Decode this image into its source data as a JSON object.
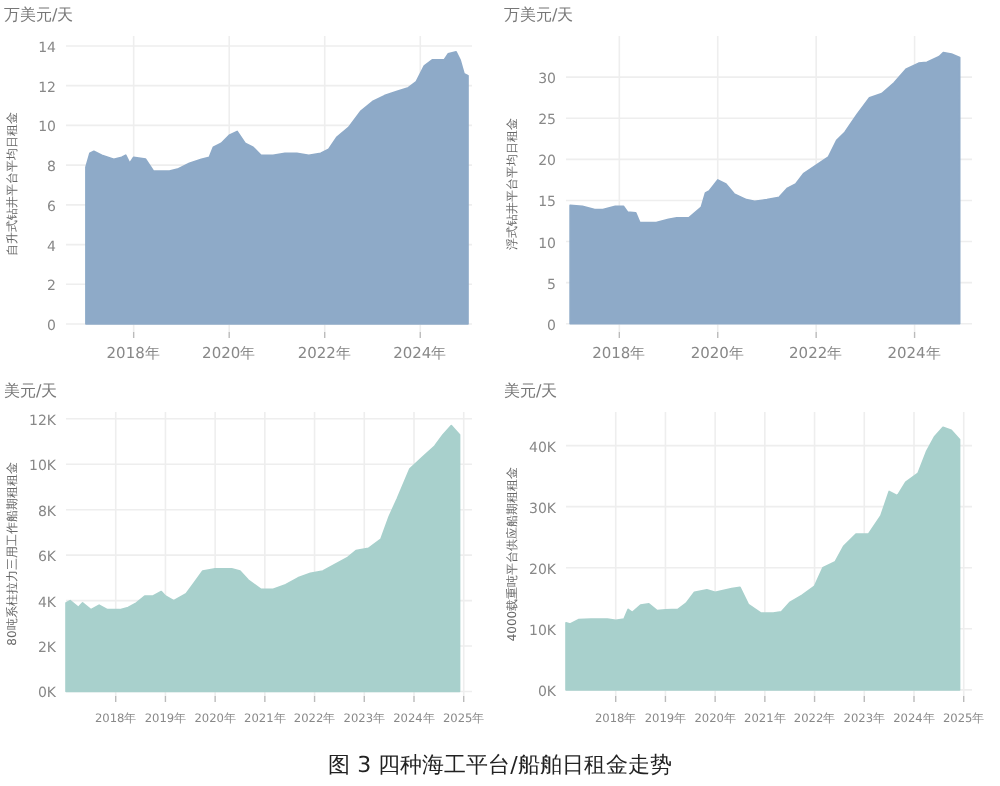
{
  "chart_data": [
    {
      "type": "area",
      "subtitle": "万美元/天",
      "ylabel": "自升式钻井平台平均日租金",
      "color": "#8eaac8",
      "grid": true,
      "xlim": [
        "2016-08",
        "2025-02"
      ],
      "ylim": [
        -0.4,
        14.5
      ],
      "xticks": [
        {
          "value": "2018",
          "label": "2018年"
        },
        {
          "value": "2020",
          "label": "2020年"
        },
        {
          "value": "2022",
          "label": "2022年"
        },
        {
          "value": "2024",
          "label": "2024年"
        }
      ],
      "yticks": [
        0,
        2,
        4,
        6,
        8,
        10,
        12,
        14
      ],
      "x": [
        "2017-01",
        "2017-02",
        "2017-03",
        "2017-05",
        "2017-08",
        "2017-10",
        "2017-11",
        "2017-12",
        "2018-01",
        "2018-04",
        "2018-06",
        "2018-10",
        "2018-12",
        "2019-03",
        "2019-06",
        "2019-08",
        "2019-09",
        "2019-11",
        "2020-01",
        "2020-03",
        "2020-05",
        "2020-07",
        "2020-09",
        "2020-12",
        "2021-03",
        "2021-06",
        "2021-09",
        "2021-12",
        "2022-02",
        "2022-04",
        "2022-07",
        "2022-10",
        "2023-01",
        "2023-04",
        "2023-07",
        "2023-10",
        "2023-12",
        "2024-02",
        "2024-04",
        "2024-07",
        "2024-08",
        "2024-10",
        "2024-11",
        "2024-12",
        "2025-01"
      ],
      "values": [
        7.9,
        8.6,
        8.7,
        8.5,
        8.3,
        8.4,
        8.5,
        8.1,
        8.4,
        8.3,
        7.7,
        7.7,
        7.8,
        8.1,
        8.3,
        8.4,
        8.9,
        9.1,
        9.5,
        9.7,
        9.1,
        8.9,
        8.5,
        8.5,
        8.6,
        8.6,
        8.5,
        8.6,
        8.8,
        9.4,
        9.9,
        10.7,
        11.2,
        11.5,
        11.7,
        11.9,
        12.2,
        13.0,
        13.3,
        13.3,
        13.6,
        13.7,
        13.3,
        12.6,
        12.5
      ]
    },
    {
      "type": "area",
      "subtitle": "万美元/天",
      "ylabel": "浮式钻井平台平均日租金",
      "color": "#8eaac8",
      "grid": true,
      "xlim": [
        "2016-12",
        "2025-03"
      ],
      "ylim": [
        -1,
        35
      ],
      "xticks": [
        {
          "value": "2018",
          "label": "2018年"
        },
        {
          "value": "2020",
          "label": "2020年"
        },
        {
          "value": "2022",
          "label": "2022年"
        },
        {
          "value": "2024",
          "label": "2024年"
        }
      ],
      "yticks": [
        0,
        5,
        10,
        15,
        20,
        25,
        30
      ],
      "x": [
        "2017-01",
        "2017-04",
        "2017-07",
        "2017-09",
        "2017-12",
        "2018-02",
        "2018-03",
        "2018-05",
        "2018-06",
        "2018-10",
        "2019-01",
        "2019-03",
        "2019-06",
        "2019-09",
        "2019-10",
        "2019-11",
        "2020-01",
        "2020-03",
        "2020-05",
        "2020-08",
        "2020-10",
        "2021-01",
        "2021-04",
        "2021-06",
        "2021-08",
        "2021-10",
        "2022-01",
        "2022-04",
        "2022-06",
        "2022-08",
        "2022-11",
        "2023-02",
        "2023-05",
        "2023-08",
        "2023-11",
        "2024-02",
        "2024-04",
        "2024-07",
        "2024-08",
        "2024-10",
        "2024-12"
      ],
      "values": [
        14.4,
        14.3,
        13.9,
        13.9,
        14.3,
        14.3,
        13.6,
        13.5,
        12.3,
        12.3,
        12.7,
        12.9,
        12.9,
        14.2,
        15.9,
        16.2,
        17.5,
        17.0,
        15.8,
        15.1,
        14.9,
        15.1,
        15.4,
        16.5,
        17.0,
        18.3,
        19.3,
        20.3,
        22.3,
        23.3,
        25.5,
        27.5,
        28.0,
        29.3,
        31.0,
        31.7,
        31.8,
        32.5,
        33.0,
        32.8,
        32.4
      ]
    },
    {
      "type": "area",
      "subtitle": "美元/天",
      "ylabel": "80吨系柱拉力三用工作船期租租金",
      "color": "#a8d0cc",
      "grid": true,
      "xlim": [
        "2017-01",
        "2025-03"
      ],
      "ylim": [
        -200,
        12300
      ],
      "xticks": [
        {
          "value": "2018",
          "label": "2018年"
        },
        {
          "value": "2019",
          "label": "2019年"
        },
        {
          "value": "2020",
          "label": "2020年"
        },
        {
          "value": "2021",
          "label": "2021年"
        },
        {
          "value": "2022",
          "label": "2022年"
        },
        {
          "value": "2023",
          "label": "2023年"
        },
        {
          "value": "2024",
          "label": "2024年"
        },
        {
          "value": "2025",
          "label": "2025年"
        }
      ],
      "yticks": [
        {
          "value": 0,
          "label": "0K"
        },
        {
          "value": 2000,
          "label": "2K"
        },
        {
          "value": 4000,
          "label": "4K"
        },
        {
          "value": 6000,
          "label": "6K"
        },
        {
          "value": 8000,
          "label": "8K"
        },
        {
          "value": 10000,
          "label": "10K"
        },
        {
          "value": 12000,
          "label": "12K"
        }
      ],
      "x": [
        "2017-01",
        "2017-02",
        "2017-04",
        "2017-05",
        "2017-07",
        "2017-09",
        "2017-11",
        "2018-02",
        "2018-04",
        "2018-06",
        "2018-08",
        "2018-10",
        "2018-12",
        "2019-01",
        "2019-03",
        "2019-06",
        "2019-08",
        "2019-10",
        "2020-01",
        "2020-05",
        "2020-07",
        "2020-09",
        "2020-12",
        "2021-03",
        "2021-06",
        "2021-09",
        "2021-12",
        "2022-03",
        "2022-06",
        "2022-09",
        "2022-11",
        "2023-02",
        "2023-05",
        "2023-07",
        "2023-09",
        "2023-12",
        "2024-03",
        "2024-06",
        "2024-08",
        "2024-10",
        "2024-12"
      ],
      "values": [
        3900,
        4000,
        3700,
        3900,
        3600,
        3800,
        3600,
        3600,
        3700,
        3900,
        4200,
        4200,
        4400,
        4200,
        4000,
        4300,
        4800,
        5300,
        5400,
        5400,
        5300,
        4900,
        4500,
        4500,
        4700,
        5000,
        5200,
        5300,
        5600,
        5900,
        6200,
        6300,
        6700,
        7700,
        8500,
        9800,
        10300,
        10800,
        11300,
        11700,
        11300
      ]
    },
    {
      "type": "area",
      "subtitle": "美元/天",
      "ylabel": "4000载重吨平台供应船期租租金",
      "color": "#a8d0cc",
      "grid": true,
      "xlim": [
        "2017-01",
        "2025-03"
      ],
      "ylim": [
        -1000,
        45500
      ],
      "xticks": [
        {
          "value": "2018",
          "label": "2018年"
        },
        {
          "value": "2019",
          "label": "2019年"
        },
        {
          "value": "2020",
          "label": "2020年"
        },
        {
          "value": "2021",
          "label": "2021年"
        },
        {
          "value": "2022",
          "label": "2022年"
        },
        {
          "value": "2023",
          "label": "2023年"
        },
        {
          "value": "2024",
          "label": "2024年"
        },
        {
          "value": "2025",
          "label": "2025年"
        }
      ],
      "yticks": [
        {
          "value": 0,
          "label": "0K"
        },
        {
          "value": 10000,
          "label": "10K"
        },
        {
          "value": 20000,
          "label": "20K"
        },
        {
          "value": 30000,
          "label": "30K"
        },
        {
          "value": 40000,
          "label": "40K"
        }
      ],
      "x": [
        "2017-01",
        "2017-02",
        "2017-04",
        "2017-07",
        "2017-11",
        "2018-01",
        "2018-03",
        "2018-04",
        "2018-05",
        "2018-07",
        "2018-09",
        "2018-11",
        "2019-01",
        "2019-04",
        "2019-06",
        "2019-08",
        "2019-11",
        "2020-01",
        "2020-05",
        "2020-07",
        "2020-09",
        "2020-12",
        "2021-03",
        "2021-05",
        "2021-07",
        "2021-10",
        "2022-01",
        "2022-03",
        "2022-06",
        "2022-08",
        "2022-11",
        "2023-02",
        "2023-05",
        "2023-07",
        "2023-09",
        "2023-11",
        "2024-02",
        "2024-04",
        "2024-06",
        "2024-08",
        "2024-10",
        "2024-12"
      ],
      "values": [
        11000,
        10800,
        11500,
        11600,
        11600,
        11400,
        11600,
        13200,
        12700,
        13900,
        14100,
        13000,
        13100,
        13200,
        14200,
        16000,
        16400,
        16000,
        16600,
        16800,
        14000,
        12600,
        12600,
        12800,
        14300,
        15500,
        17000,
        20000,
        21000,
        23500,
        25500,
        25500,
        28500,
        32500,
        31800,
        34000,
        35500,
        39000,
        41500,
        43000,
        42500,
        41000
      ],
      "annotations": [
        "图 3 四种海工平台/船舶日租金走势"
      ]
    }
  ]
}
